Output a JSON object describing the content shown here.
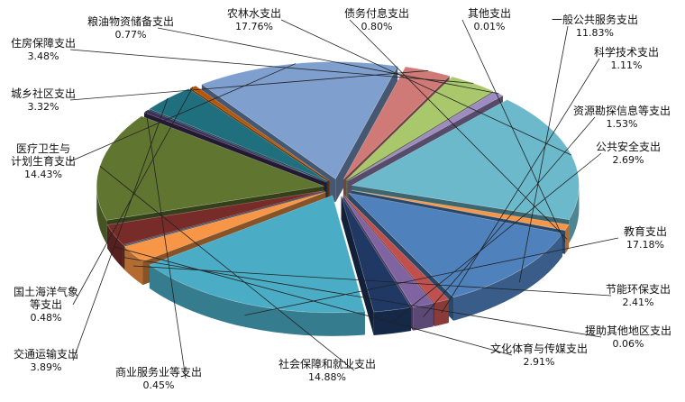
{
  "chart_data": {
    "type": "pie",
    "title": "",
    "categories": [
      "一般公共服务支出",
      "科学技术支出",
      "资源勘探信息等支出",
      "公共安全支出",
      "教育支出",
      "节能环保支出",
      "援助其他地区支出",
      "文化体育与传媒支出",
      "社会保障和就业支出",
      "商业服务业等支出",
      "交通运输支出",
      "国土海洋气象等支出",
      "医疗卫生与计划生育支出",
      "城乡社区支出",
      "住房保障支出",
      "粮油物资储备支出",
      "农林水支出",
      "债务付息支出",
      "其他支出"
    ],
    "values": [
      11.83,
      1.11,
      1.53,
      2.69,
      17.18,
      2.41,
      0.06,
      2.91,
      14.88,
      0.45,
      3.89,
      0.48,
      14.43,
      3.32,
      3.48,
      0.77,
      17.76,
      0.8,
      0.01
    ],
    "value_labels": [
      "11.83%",
      "1.11%",
      "1.53%",
      "2.69%",
      "17.18%",
      "2.41%",
      "0.06%",
      "2.91%",
      "14.88%",
      "0.45%",
      "3.89%",
      "0.48%",
      "14.43%",
      "3.32%",
      "3.48%",
      "0.77%",
      "17.76%",
      "0.80%",
      "0.01%"
    ],
    "label_lines": [
      [
        "一般公共服务支出"
      ],
      [
        "科学技术支出"
      ],
      [
        "资源勘探信息等支出"
      ],
      [
        "公共安全支出"
      ],
      [
        "教育支出"
      ],
      [
        "节能环保支出"
      ],
      [
        "援助其他地区支出"
      ],
      [
        "文化体育与传媒支出"
      ],
      [
        "社会保障和就业支出"
      ],
      [
        "商业服务业等支出"
      ],
      [
        "交通运输支出"
      ],
      [
        "国土海洋气象",
        "等支出"
      ],
      [
        "医疗卫生与",
        "计划生育支出"
      ],
      [
        "城乡社区支出"
      ],
      [
        "住房保障支出"
      ],
      [
        "粮油物资储备支出"
      ],
      [
        "农林水支出"
      ],
      [
        "债务付息支出"
      ],
      [
        "其他支出"
      ]
    ],
    "colors": [
      "#4F81BD",
      "#C0504D",
      "#8064A2",
      "#1F3864",
      "#4BACC6",
      "#F79646",
      "#2C4D75",
      "#772C2A",
      "#5F7530",
      "#3E2F5B",
      "#1F6F7F",
      "#B65708",
      "#7F9FCF",
      "#D07A78",
      "#A9C76B",
      "#9D8BC1",
      "#6DB9CC",
      "#F79646",
      "#4F81BD"
    ],
    "style": "3d-exploded",
    "start_angle_deg": 20,
    "legend": "none (labels with leader lines)"
  }
}
